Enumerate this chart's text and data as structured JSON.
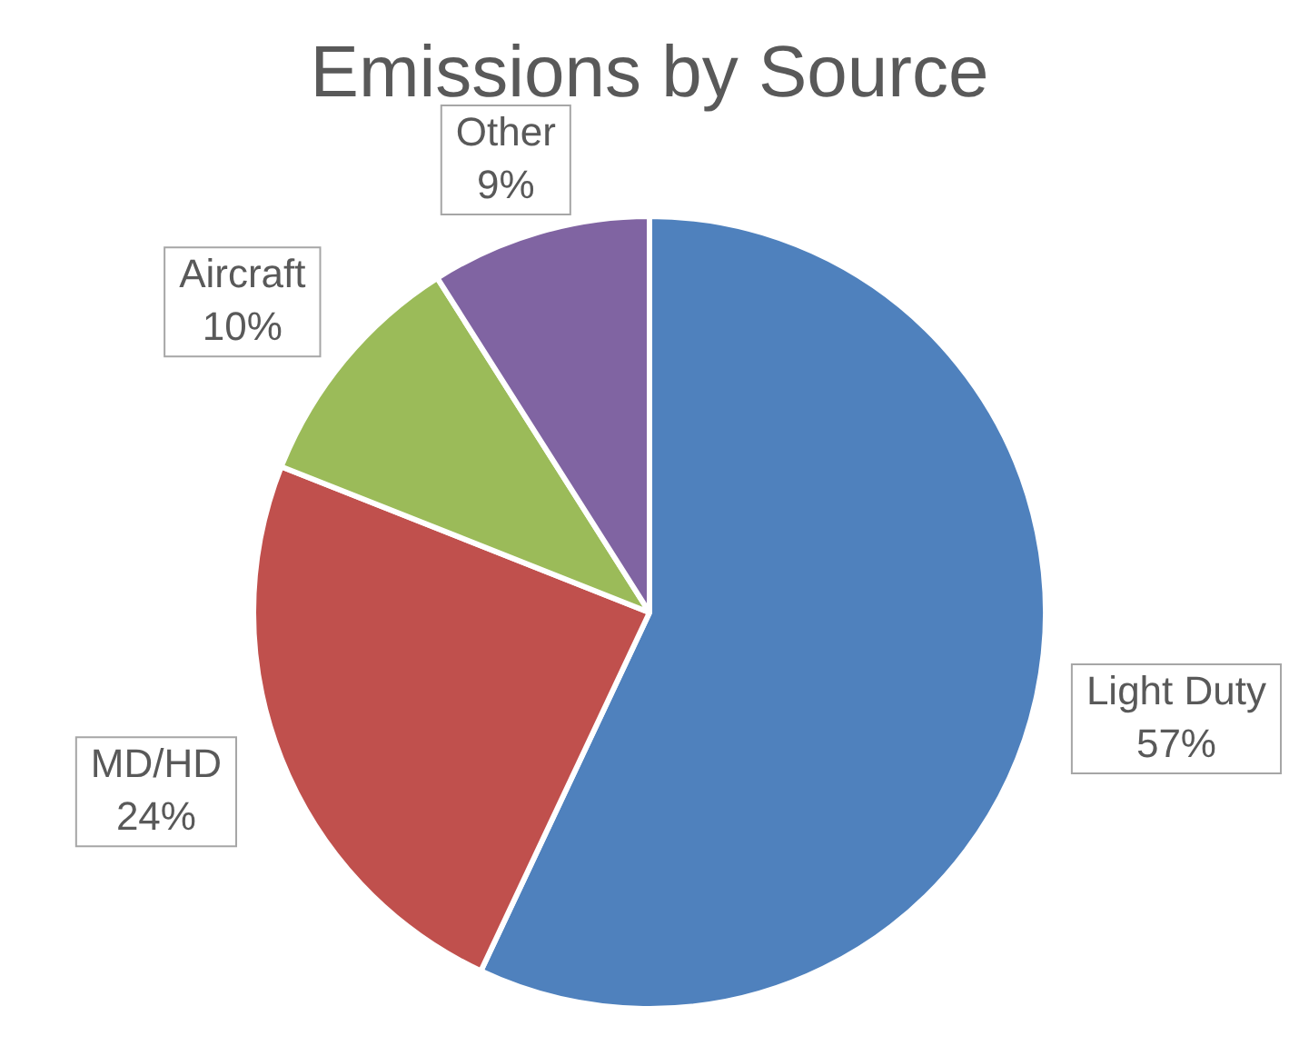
{
  "chart_data": {
    "type": "pie",
    "title": "Emissions by Source",
    "categories": [
      "Light Duty",
      "MD/HD",
      "Aircraft",
      "Other"
    ],
    "values": [
      57,
      24,
      10,
      9
    ],
    "colors": [
      "#4f81bd",
      "#c0504d",
      "#9bbb59",
      "#8064a2"
    ],
    "value_labels": [
      "57%",
      "24%",
      "10%",
      "9%"
    ],
    "legend": false
  }
}
